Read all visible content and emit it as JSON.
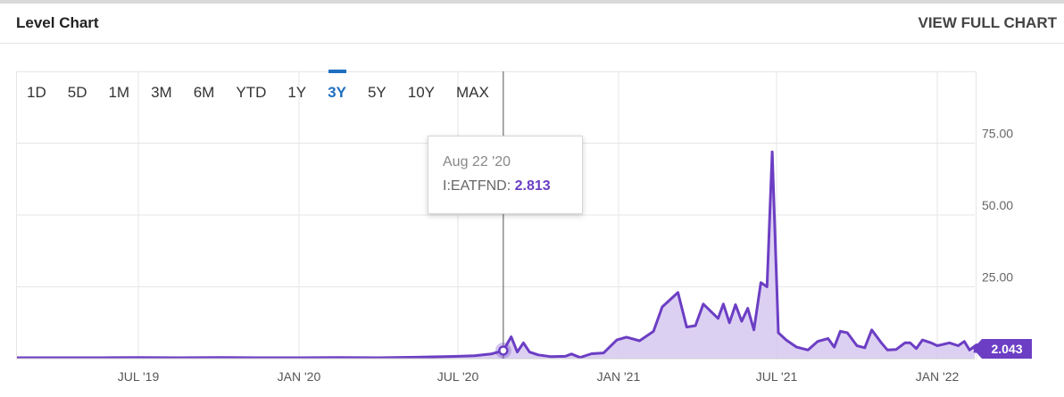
{
  "header": {
    "title": "Level Chart",
    "view_full": "VIEW FULL CHART"
  },
  "ranges": [
    "1D",
    "5D",
    "1M",
    "3M",
    "6M",
    "YTD",
    "1Y",
    "3Y",
    "5Y",
    "10Y",
    "MAX"
  ],
  "active_range": "3Y",
  "tooltip": {
    "date": "Aug 22 '20",
    "label": "I:EATFND:",
    "value": "2.813"
  },
  "last_value": "2.043",
  "colors": {
    "line": "#6c3ec4",
    "fill": "#d6c8f0",
    "active": "#1f6fbf",
    "grid": "#e6e6e6"
  },
  "chart_data": {
    "type": "area",
    "title": "Level Chart",
    "series_label": "I:EATFND",
    "ylim": [
      0,
      100
    ],
    "y_ticks": [
      25,
      50,
      75
    ],
    "y_tick_labels": [
      "25.00",
      "50.00",
      "75.00"
    ],
    "x_ticks": [
      {
        "date": "2019-07-01",
        "label": "JUL '19"
      },
      {
        "date": "2020-01-01",
        "label": "JAN '20"
      },
      {
        "date": "2020-07-01",
        "label": "JUL '20"
      },
      {
        "date": "2021-01-01",
        "label": "JAN '21"
      },
      {
        "date": "2021-07-01",
        "label": "JUL '21"
      },
      {
        "date": "2022-01-01",
        "label": "JAN '22"
      }
    ],
    "points": [
      [
        "2019-02-15",
        0.3
      ],
      [
        "2019-04-01",
        0.3
      ],
      [
        "2019-05-15",
        0.3
      ],
      [
        "2019-07-01",
        0.4
      ],
      [
        "2019-08-15",
        0.3
      ],
      [
        "2019-10-01",
        0.4
      ],
      [
        "2019-11-15",
        0.3
      ],
      [
        "2020-01-01",
        0.3
      ],
      [
        "2020-02-15",
        0.4
      ],
      [
        "2020-04-01",
        0.3
      ],
      [
        "2020-05-15",
        0.5
      ],
      [
        "2020-07-01",
        0.8
      ],
      [
        "2020-07-20",
        1.0
      ],
      [
        "2020-08-08",
        1.6
      ],
      [
        "2020-08-22",
        2.813
      ],
      [
        "2020-08-31",
        7.6
      ],
      [
        "2020-09-07",
        2.3
      ],
      [
        "2020-09-14",
        5.5
      ],
      [
        "2020-09-21",
        2.3
      ],
      [
        "2020-10-01",
        1.3
      ],
      [
        "2020-10-15",
        0.7
      ],
      [
        "2020-11-01",
        0.8
      ],
      [
        "2020-11-08",
        1.6
      ],
      [
        "2020-11-18",
        0.4
      ],
      [
        "2020-12-01",
        1.7
      ],
      [
        "2020-12-15",
        2.0
      ],
      [
        "2020-12-30",
        6.5
      ],
      [
        "2021-01-10",
        7.5
      ],
      [
        "2021-01-25",
        6.2
      ],
      [
        "2021-02-10",
        9.5
      ],
      [
        "2021-02-20",
        18.0
      ],
      [
        "2021-03-10",
        23.0
      ],
      [
        "2021-03-20",
        11.0
      ],
      [
        "2021-03-30",
        11.5
      ],
      [
        "2021-04-08",
        19.0
      ],
      [
        "2021-04-25",
        14.0
      ],
      [
        "2021-05-01",
        19.0
      ],
      [
        "2021-05-08",
        12.5
      ],
      [
        "2021-05-15",
        18.8
      ],
      [
        "2021-05-22",
        13.0
      ],
      [
        "2021-05-29",
        17.5
      ],
      [
        "2021-06-05",
        10.0
      ],
      [
        "2021-06-13",
        26.5
      ],
      [
        "2021-06-20",
        25.0
      ],
      [
        "2021-06-26",
        72.0
      ],
      [
        "2021-07-03",
        9.0
      ],
      [
        "2021-07-12",
        6.5
      ],
      [
        "2021-07-24",
        4.0
      ],
      [
        "2021-08-06",
        3.0
      ],
      [
        "2021-08-17",
        6.0
      ],
      [
        "2021-08-29",
        7.0
      ],
      [
        "2021-09-05",
        4.0
      ],
      [
        "2021-09-12",
        9.5
      ],
      [
        "2021-09-20",
        9.0
      ],
      [
        "2021-10-01",
        4.5
      ],
      [
        "2021-10-10",
        3.8
      ],
      [
        "2021-10-18",
        10.0
      ],
      [
        "2021-10-29",
        5.5
      ],
      [
        "2021-11-05",
        3.0
      ],
      [
        "2021-11-15",
        3.2
      ],
      [
        "2021-11-25",
        5.5
      ],
      [
        "2021-12-01",
        5.5
      ],
      [
        "2021-12-08",
        3.5
      ],
      [
        "2021-12-15",
        6.5
      ],
      [
        "2021-12-25",
        5.5
      ],
      [
        "2022-01-01",
        4.5
      ],
      [
        "2022-01-08",
        5.0
      ],
      [
        "2022-01-15",
        5.5
      ],
      [
        "2022-01-25",
        4.5
      ],
      [
        "2022-02-01",
        6.0
      ],
      [
        "2022-02-07",
        3.0
      ],
      [
        "2022-02-15",
        4.8
      ],
      [
        "2022-02-24",
        2.043
      ]
    ],
    "highlight": {
      "date": "2020-08-22",
      "value": 2.813
    }
  }
}
